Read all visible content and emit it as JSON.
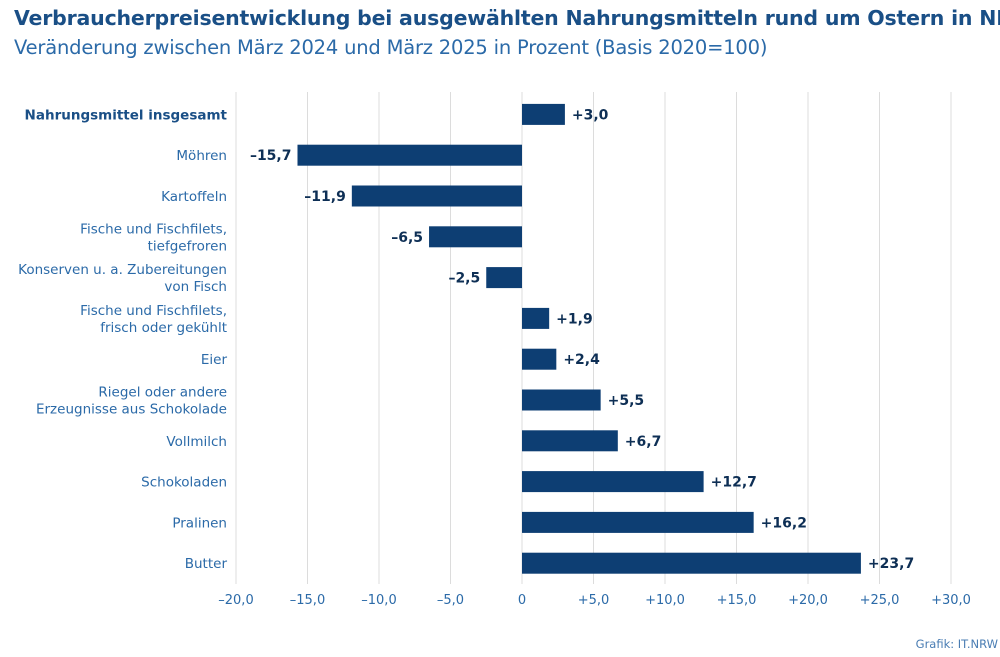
{
  "header": {
    "title": "Verbraucherpreisentwicklung bei ausgewählten Nahrungsmitteln rund um Ostern in NRW",
    "subtitle": "Veränderung zwischen März 2024 und März 2025 in Prozent (Basis 2020=100)"
  },
  "source": "Grafik: IT.NRW",
  "colors": {
    "bar": "#0d3e73",
    "grid": "#dcdcdc",
    "text": "#2b6aa8",
    "title": "#1a4f86"
  },
  "chart_data": {
    "type": "bar",
    "orientation": "horizontal",
    "title": "Verbraucherpreisentwicklung bei ausgewählten Nahrungsmitteln rund um Ostern in NRW",
    "subtitle": "Veränderung zwischen März 2024 und März 2025 in Prozent (Basis 2020=100)",
    "categories": [
      [
        "Nahrungsmittel insgesamt"
      ],
      [
        "Möhren"
      ],
      [
        "Kartoffeln"
      ],
      [
        "Fische und Fischfilets,",
        "tiefgefroren"
      ],
      [
        "Konserven u. a. Zubereitungen",
        "von Fisch"
      ],
      [
        "Fische und Fischfilets,",
        "frisch oder gekühlt"
      ],
      [
        "Eier"
      ],
      [
        "Riegel oder andere",
        "Erzeugnisse aus Schokolade"
      ],
      [
        "Vollmilch"
      ],
      [
        "Schokoladen"
      ],
      [
        "Pralinen"
      ],
      [
        "Butter"
      ]
    ],
    "highlight_category": 0,
    "values": [
      3.0,
      -15.7,
      -11.9,
      -6.5,
      -2.5,
      1.9,
      2.4,
      5.5,
      6.7,
      12.7,
      16.2,
      23.7
    ],
    "value_labels": [
      "+3,0",
      "–15,7",
      "–11,9",
      "–6,5",
      "–2,5",
      "+1,9",
      "+2,4",
      "+5,5",
      "+6,7",
      "+12,7",
      "+16,2",
      "+23,7"
    ],
    "xlim": [
      -20,
      30
    ],
    "xticks": [
      -20,
      -15,
      -10,
      -5,
      0,
      5,
      10,
      15,
      20,
      25,
      30
    ],
    "xtick_labels": [
      "–20,0",
      "–15,0",
      "–10,0",
      "–5,0",
      "0",
      "+5,0",
      "+10,0",
      "+15,0",
      "+20,0",
      "+25,0",
      "+30,0"
    ],
    "grid": true,
    "xlabel": "",
    "ylabel": ""
  }
}
